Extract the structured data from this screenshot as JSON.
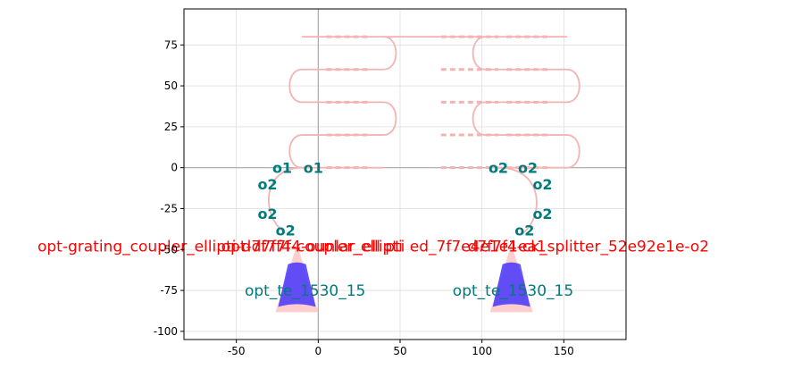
{
  "chart_data": {
    "type": "layout",
    "title": "",
    "xlabel": "",
    "ylabel": "",
    "xlim": [
      -82,
      188
    ],
    "ylim": [
      -105,
      97
    ],
    "grid": true,
    "xticks": [
      -50,
      0,
      50,
      100,
      150
    ],
    "yticks": [
      -100,
      -75,
      -50,
      -25,
      0,
      25,
      50,
      75
    ],
    "colors": {
      "waveguide": "#f4b3b3",
      "grating": "#3a2cff",
      "taper": "#ffc8c8",
      "port": "#007a7a",
      "red": "#ff0000"
    },
    "couplers": [
      {
        "x": -13,
        "y_tip": -47,
        "y_base": -85
      },
      {
        "x": 118,
        "y_tip": -47,
        "y_base": -85
      }
    ],
    "port_labels": [
      {
        "text": "o1",
        "x": -22,
        "y": 0
      },
      {
        "text": "o1",
        "x": -3,
        "y": 0
      },
      {
        "text": "o2",
        "x": -31,
        "y": -10
      },
      {
        "text": "o2",
        "x": -31,
        "y": -28
      },
      {
        "text": "o2",
        "x": -20,
        "y": -38
      },
      {
        "text": "o2",
        "x": 110,
        "y": 0
      },
      {
        "text": "o2",
        "x": 128,
        "y": 0
      },
      {
        "text": "o2",
        "x": 137,
        "y": -10
      },
      {
        "text": "o2",
        "x": 137,
        "y": -28
      },
      {
        "text": "o2",
        "x": 126,
        "y": -38
      }
    ],
    "red_labels": [
      {
        "text": "opt-grating_coupler_ellipti-d7f7f4-coupler_ellipti",
        "x": -60,
        "y": -48
      },
      {
        "text": "opt-d7f7f4-ounlar_ell pti ed_7f7e4e1e1ea1",
        "x": 40,
        "y": -48
      },
      {
        "text": "d7f7f4-ck_splitter_52e92e1e-o2",
        "x": 165,
        "y": -48
      }
    ],
    "teal_labels": [
      {
        "text": "opt_te_1530_15",
        "x": -8,
        "y": -75
      },
      {
        "text": "opt_te_1530_15",
        "x": 119,
        "y": -75
      }
    ]
  }
}
